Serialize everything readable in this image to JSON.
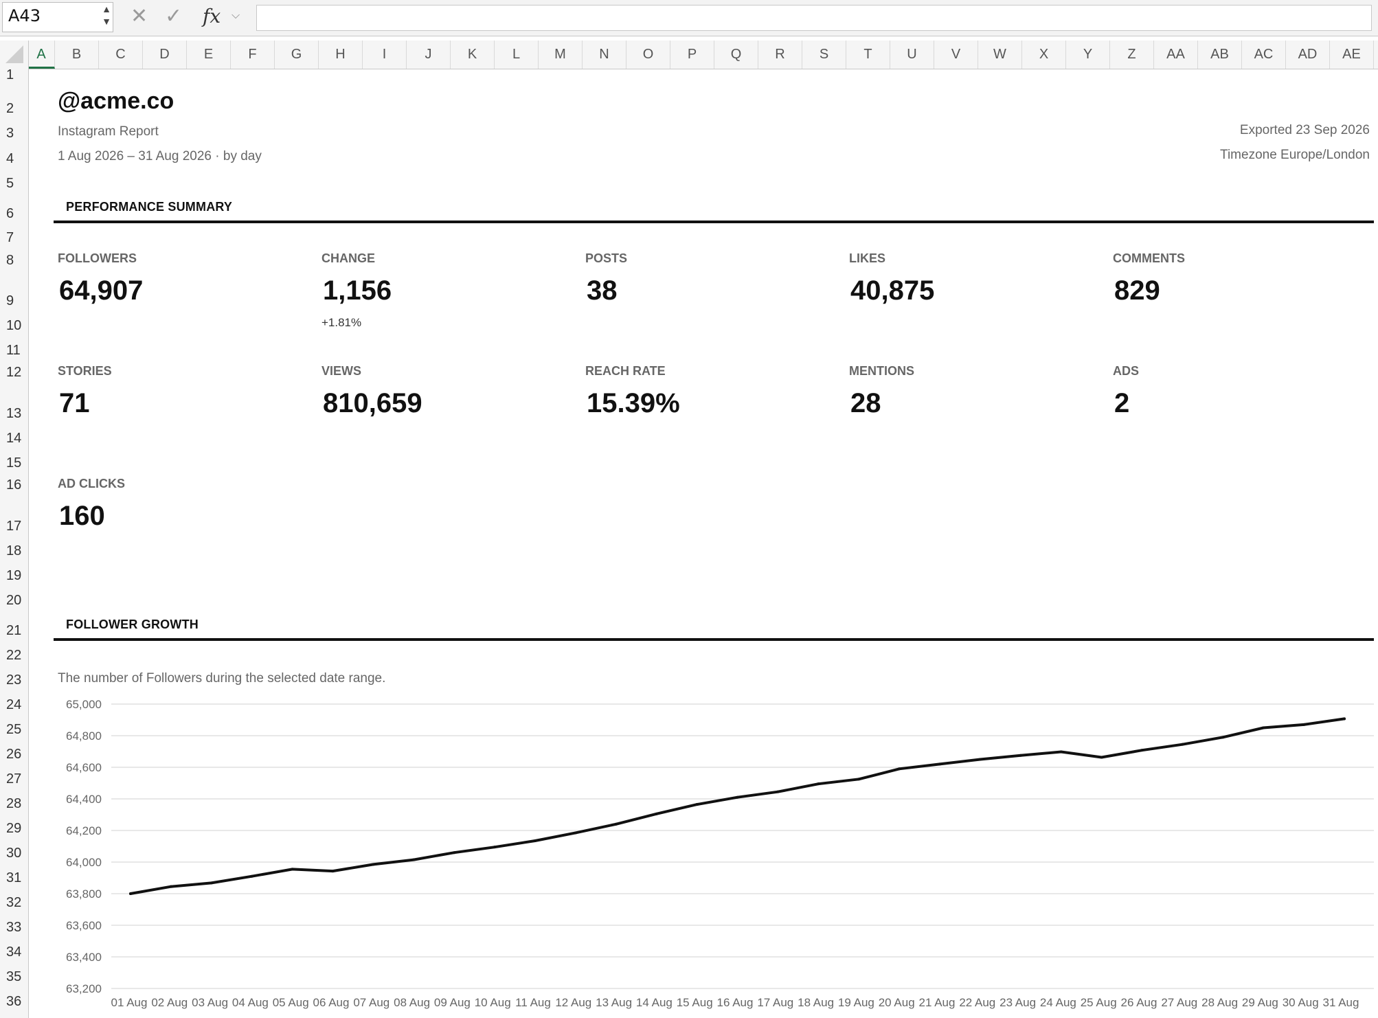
{
  "formula_bar": {
    "name_box": "A43",
    "cancel_icon": "cross-icon",
    "confirm_icon": "check-icon",
    "fx_label": "fx",
    "formula": ""
  },
  "columns": [
    "A",
    "B",
    "C",
    "D",
    "E",
    "F",
    "G",
    "H",
    "I",
    "J",
    "K",
    "L",
    "M",
    "N",
    "O",
    "P",
    "Q",
    "R",
    "S",
    "T",
    "U",
    "V",
    "W",
    "X",
    "Y",
    "Z",
    "AA",
    "AB",
    "AC",
    "AD",
    "AE"
  ],
  "rows": [
    "1",
    "2",
    "3",
    "4",
    "5",
    "6",
    "7",
    "8",
    "9",
    "10",
    "11",
    "12",
    "13",
    "14",
    "15",
    "16",
    "17",
    "18",
    "19",
    "20",
    "21",
    "22",
    "23",
    "24",
    "25",
    "26",
    "27",
    "28",
    "29",
    "30",
    "31",
    "32",
    "33",
    "34",
    "35",
    "36"
  ],
  "report": {
    "handle": "@acme.co",
    "subtitle": "Instagram Report",
    "date_range": "1 Aug 2026 – 31 Aug 2026  ·  by day",
    "exported": "Exported 23 Sep 2026",
    "timezone": "Timezone Europe/London"
  },
  "summary": {
    "title": "PERFORMANCE SUMMARY",
    "kpis": [
      {
        "label": "FOLLOWERS",
        "value": "64,907"
      },
      {
        "label": "CHANGE",
        "value": "1,156",
        "delta": "+1.81%"
      },
      {
        "label": "POSTS",
        "value": "38"
      },
      {
        "label": "LIKES",
        "value": "40,875"
      },
      {
        "label": "COMMENTS",
        "value": "829"
      },
      {
        "label": "STORIES",
        "value": "71"
      },
      {
        "label": "VIEWS",
        "value": "810,659"
      },
      {
        "label": "REACH RATE",
        "value": "15.39%"
      },
      {
        "label": "MENTIONS",
        "value": "28"
      },
      {
        "label": "ADS",
        "value": "2"
      },
      {
        "label": "AD CLICKS",
        "value": "160"
      }
    ]
  },
  "growth": {
    "title": "FOLLOWER GROWTH",
    "description": "The number of Followers during the selected date range."
  },
  "chart_data": {
    "type": "line",
    "title": "",
    "xlabel": "",
    "ylabel": "",
    "ylim": [
      63200,
      65000
    ],
    "yticks": [
      "65,000",
      "64,800",
      "64,600",
      "64,400",
      "64,200",
      "64,000",
      "63,800",
      "63,600",
      "63,400",
      "63,200"
    ],
    "ytick_values": [
      65000,
      64800,
      64600,
      64400,
      64200,
      64000,
      63800,
      63600,
      63400,
      63200
    ],
    "xtick_labels": [
      "01 Aug",
      "02 Aug",
      "03 Aug",
      "04 Aug",
      "05 Aug",
      "06 Aug",
      "07 Aug",
      "08 Aug",
      "09 Aug",
      "10 Aug",
      "11 Aug",
      "12 Aug",
      "13 Aug",
      "14 Aug",
      "15 Aug",
      "16 Aug",
      "17 Aug",
      "18 Aug",
      "19 Aug",
      "20 Aug",
      "21 Aug",
      "22 Aug",
      "23 Aug",
      "24 Aug",
      "25 Aug",
      "26 Aug",
      "27 Aug",
      "28 Aug",
      "29 Aug",
      "30 Aug",
      "31 Aug"
    ],
    "series": [
      {
        "values": [
          63800,
          63845,
          63868,
          63910,
          63955,
          63943,
          63985,
          64015,
          64060,
          64095,
          64135,
          64185,
          64240,
          64305,
          64365,
          64410,
          64445,
          64495,
          64525,
          64590,
          64620,
          64650,
          64675,
          64698,
          64663,
          64708,
          64745,
          64790,
          64850,
          64870,
          64907
        ]
      }
    ],
    "grid": true,
    "legend": "none",
    "line_color": "#111111",
    "grid_color": "#e0e0e0"
  }
}
